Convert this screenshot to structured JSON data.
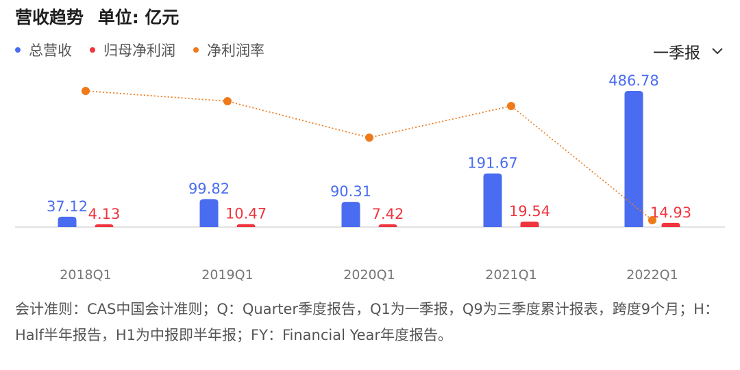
{
  "header": {
    "title": "营收趋势",
    "unit": "单位: 亿元"
  },
  "period_selector": {
    "value": "一季报"
  },
  "footnote": "会计准则：CAS中国会计准则；Q：Quarter季度报告，Q1为一季报，Q9为三季度累计报表，跨度9个月；H：Half半年报告，H1为中报即半年报；FY：Financial Year年度报告。",
  "icons": {
    "period_dropdown": "chevron-down-icon"
  },
  "chart_data": {
    "type": "bar",
    "categories": [
      "2018Q1",
      "2019Q1",
      "2020Q1",
      "2021Q1",
      "2022Q1"
    ],
    "series": [
      {
        "name": "总营收",
        "color": "#4a6cf0",
        "values": [
          37.12,
          99.82,
          90.31,
          191.67,
          486.78
        ]
      },
      {
        "name": "归母净利润",
        "color": "#f0353f",
        "values": [
          4.13,
          10.47,
          7.42,
          19.54,
          14.93
        ]
      },
      {
        "name": "净利润率",
        "color": "#f07a1a",
        "type": "line",
        "values": [
          11.13,
          10.49,
          8.22,
          10.19,
          3.07
        ]
      }
    ],
    "ylim": [
      0,
      500
    ],
    "grid": false,
    "legend_position": "top-left"
  }
}
